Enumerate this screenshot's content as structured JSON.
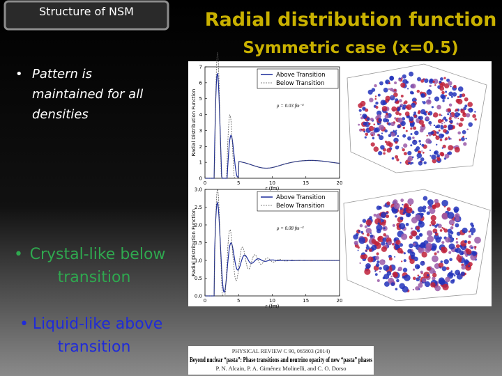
{
  "tab": "Structure of NSM",
  "title": [
    "Radial distribution function",
    "Symmetric case (x=0.5)"
  ],
  "bullets": [
    {
      "lines": [
        "Pattern is",
        "maintained for all",
        "densities"
      ]
    },
    {
      "lines": [
        "Crystal-like below",
        "transition"
      ]
    },
    {
      "lines": [
        "Liquid-like above",
        "transition"
      ]
    }
  ],
  "plots": [
    {
      "ylabel": "Radial Distribution Function",
      "xlabel": "r (fm)",
      "legend": [
        "Above Transition",
        "Below Transition"
      ],
      "annotation": "ρ = 0.03 fm⁻³",
      "yticks": [
        "0",
        "1",
        "2",
        "3",
        "4",
        "5",
        "6",
        "7"
      ],
      "xticks": [
        "0",
        "5",
        "10",
        "15",
        "20"
      ]
    },
    {
      "ylabel": "Radial Distribution Function",
      "xlabel": "r (fm)",
      "legend": [
        "Above Transition",
        "Below Transition"
      ],
      "annotation": "ρ = 0.08 fm⁻³",
      "yticks": [
        "0.0",
        "0.5",
        "1.0",
        "1.5",
        "2.0",
        "2.5",
        "3.0"
      ],
      "xticks": [
        "0",
        "5",
        "10",
        "15",
        "20"
      ]
    }
  ],
  "citation": {
    "journal": "PHYSICAL REVIEW C 90, 065803 (2014)",
    "title": "Beyond nuclear “pasta”: Phase transitions and neutrino opacity of new “pasta” phases",
    "authors": "P. N. Alcain, P. A. Giménez Molinelli, and C. O. Dorso"
  }
}
